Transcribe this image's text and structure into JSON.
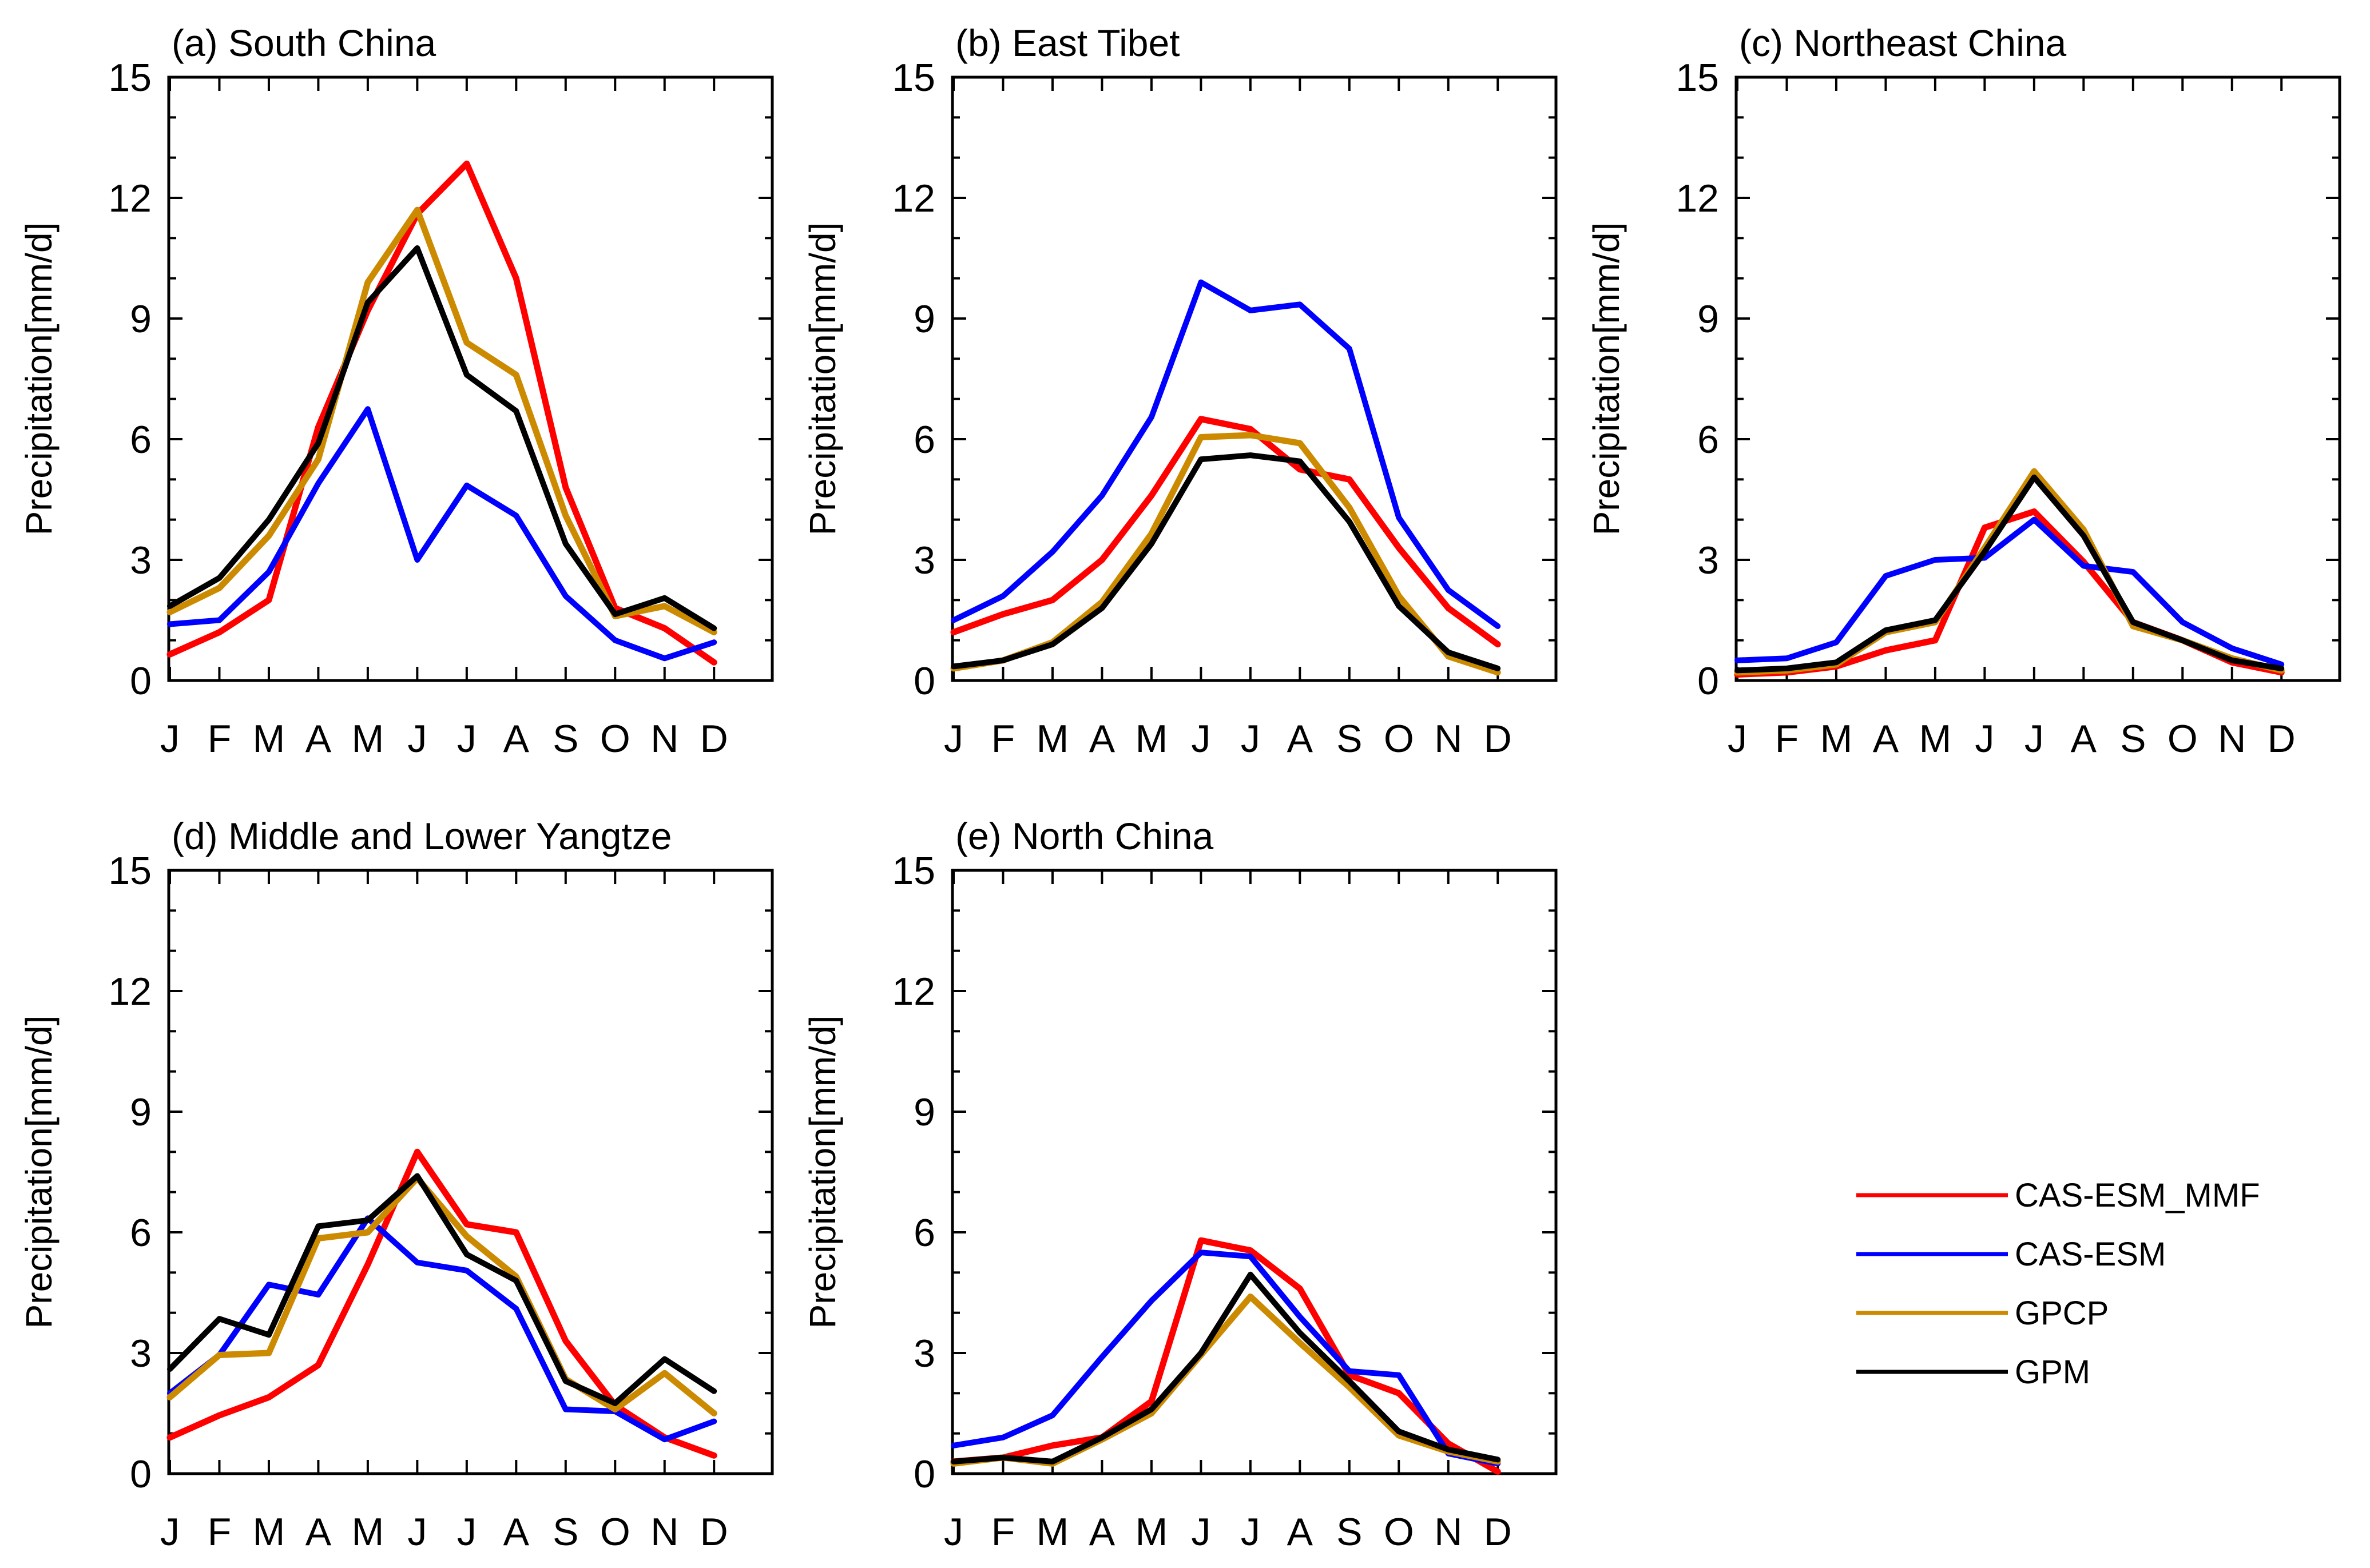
{
  "figure": {
    "legend": [
      {
        "name": "CAS-ESM_MMF",
        "color": "#ff0000"
      },
      {
        "name": "CAS-ESM",
        "color": "#0000ff"
      },
      {
        "name": "GPCP",
        "color": "#cc8a00"
      },
      {
        "name": "GPM",
        "color": "#000000"
      }
    ]
  },
  "chart_data": [
    {
      "type": "line",
      "title": "(a) South China",
      "ylabel": "Precipitation[mm/d]",
      "categories": [
        "J",
        "F",
        "M",
        "A",
        "M",
        "J",
        "J",
        "A",
        "S",
        "O",
        "N",
        "D"
      ],
      "ylim": [
        0,
        15
      ],
      "yticks": [
        0,
        3,
        6,
        9,
        12,
        15
      ],
      "series": [
        {
          "name": "CAS-ESM_MMF",
          "color": "#ff0000",
          "values": [
            0.65,
            1.2,
            2.0,
            6.3,
            9.2,
            11.6,
            12.85,
            10.0,
            4.8,
            1.8,
            1.3,
            0.45
          ]
        },
        {
          "name": "CAS-ESM",
          "color": "#0000ff",
          "values": [
            1.4,
            1.5,
            2.7,
            4.9,
            6.75,
            3.0,
            4.85,
            4.1,
            2.1,
            1.0,
            0.55,
            0.95
          ]
        },
        {
          "name": "GPCP",
          "color": "#cc8a00",
          "values": [
            1.7,
            2.3,
            3.6,
            5.5,
            9.9,
            11.7,
            8.4,
            7.6,
            4.1,
            1.6,
            1.85,
            1.2
          ]
        },
        {
          "name": "GPM",
          "color": "#000000",
          "values": [
            1.85,
            2.55,
            4.0,
            5.9,
            9.4,
            10.75,
            7.6,
            6.7,
            3.4,
            1.65,
            2.05,
            1.3
          ]
        }
      ]
    },
    {
      "type": "line",
      "title": "(b) East Tibet",
      "ylabel": "Precipitation[mm/d]",
      "categories": [
        "J",
        "F",
        "M",
        "A",
        "M",
        "J",
        "J",
        "A",
        "S",
        "O",
        "N",
        "D"
      ],
      "ylim": [
        0,
        15
      ],
      "yticks": [
        0,
        3,
        6,
        9,
        12,
        15
      ],
      "series": [
        {
          "name": "CAS-ESM_MMF",
          "color": "#ff0000",
          "values": [
            1.2,
            1.65,
            2.0,
            3.0,
            4.6,
            6.5,
            6.25,
            5.25,
            5.0,
            3.3,
            1.8,
            0.9
          ]
        },
        {
          "name": "CAS-ESM",
          "color": "#0000ff",
          "values": [
            1.5,
            2.1,
            3.2,
            4.6,
            6.55,
            9.9,
            9.2,
            9.35,
            8.25,
            4.05,
            2.25,
            1.35
          ]
        },
        {
          "name": "GPCP",
          "color": "#cc8a00",
          "values": [
            0.3,
            0.5,
            0.95,
            1.95,
            3.65,
            6.05,
            6.1,
            5.9,
            4.3,
            2.1,
            0.6,
            0.2
          ]
        },
        {
          "name": "GPM",
          "color": "#000000",
          "values": [
            0.35,
            0.5,
            0.9,
            1.8,
            3.4,
            5.5,
            5.6,
            5.45,
            3.95,
            1.85,
            0.7,
            0.3
          ]
        }
      ]
    },
    {
      "type": "line",
      "title": "(c) Northeast China",
      "ylabel": "Precipitation[mm/d]",
      "categories": [
        "J",
        "F",
        "M",
        "A",
        "M",
        "J",
        "J",
        "A",
        "S",
        "O",
        "N",
        "D"
      ],
      "ylim": [
        0,
        15
      ],
      "yticks": [
        0,
        3,
        6,
        9,
        12,
        15
      ],
      "series": [
        {
          "name": "CAS-ESM_MMF",
          "color": "#ff0000",
          "values": [
            0.15,
            0.2,
            0.35,
            0.75,
            1.0,
            3.8,
            4.2,
            2.95,
            1.45,
            1.0,
            0.45,
            0.2
          ]
        },
        {
          "name": "CAS-ESM",
          "color": "#0000ff",
          "values": [
            0.5,
            0.55,
            0.95,
            2.6,
            3.0,
            3.05,
            4.0,
            2.85,
            2.7,
            1.45,
            0.8,
            0.4
          ]
        },
        {
          "name": "GPCP",
          "color": "#cc8a00",
          "values": [
            0.2,
            0.25,
            0.4,
            1.2,
            1.45,
            3.3,
            5.2,
            3.75,
            1.35,
            1.0,
            0.55,
            0.25
          ]
        },
        {
          "name": "GPM",
          "color": "#000000",
          "values": [
            0.25,
            0.3,
            0.45,
            1.25,
            1.5,
            3.2,
            5.05,
            3.6,
            1.45,
            1.0,
            0.5,
            0.3
          ]
        }
      ]
    },
    {
      "type": "line",
      "title": "(d) Middle and Lower Yangtze",
      "ylabel": "Precipitation[mm/d]",
      "categories": [
        "J",
        "F",
        "M",
        "A",
        "M",
        "J",
        "J",
        "A",
        "S",
        "O",
        "N",
        "D"
      ],
      "ylim": [
        0,
        15
      ],
      "yticks": [
        0,
        3,
        6,
        9,
        12,
        15
      ],
      "series": [
        {
          "name": "CAS-ESM_MMF",
          "color": "#ff0000",
          "values": [
            0.9,
            1.45,
            1.9,
            2.7,
            5.2,
            8.0,
            6.2,
            6.0,
            3.3,
            1.7,
            0.9,
            0.45
          ]
        },
        {
          "name": "CAS-ESM",
          "color": "#0000ff",
          "values": [
            2.0,
            2.95,
            4.7,
            4.45,
            6.35,
            5.25,
            5.05,
            4.1,
            1.6,
            1.55,
            0.85,
            1.3
          ]
        },
        {
          "name": "GPCP",
          "color": "#cc8a00",
          "values": [
            1.9,
            2.95,
            3.0,
            5.85,
            6.0,
            7.35,
            5.9,
            4.9,
            2.35,
            1.6,
            2.5,
            1.5
          ]
        },
        {
          "name": "GPM",
          "color": "#000000",
          "values": [
            2.6,
            3.85,
            3.45,
            6.15,
            6.3,
            7.4,
            5.45,
            4.8,
            2.3,
            1.75,
            2.85,
            2.05
          ]
        }
      ]
    },
    {
      "type": "line",
      "title": "(e) North China",
      "ylabel": "Precipitation[mm/d]",
      "categories": [
        "J",
        "F",
        "M",
        "A",
        "M",
        "J",
        "J",
        "A",
        "S",
        "O",
        "N",
        "D"
      ],
      "ylim": [
        0,
        15
      ],
      "yticks": [
        0,
        3,
        6,
        9,
        12,
        15
      ],
      "series": [
        {
          "name": "CAS-ESM_MMF",
          "color": "#ff0000",
          "values": [
            0.3,
            0.4,
            0.7,
            0.9,
            1.8,
            5.8,
            5.55,
            4.6,
            2.45,
            2.0,
            0.75,
            0.05
          ]
        },
        {
          "name": "CAS-ESM",
          "color": "#0000ff",
          "values": [
            0.7,
            0.9,
            1.45,
            2.9,
            4.3,
            5.5,
            5.4,
            3.9,
            2.55,
            2.45,
            0.5,
            0.25
          ]
        },
        {
          "name": "GPCP",
          "color": "#cc8a00",
          "values": [
            0.25,
            0.4,
            0.25,
            0.85,
            1.5,
            2.95,
            4.4,
            3.25,
            2.15,
            0.95,
            0.55,
            0.3
          ]
        },
        {
          "name": "GPM",
          "color": "#000000",
          "values": [
            0.3,
            0.4,
            0.3,
            0.9,
            1.6,
            3.0,
            4.95,
            3.5,
            2.3,
            1.05,
            0.6,
            0.35
          ]
        }
      ]
    }
  ]
}
